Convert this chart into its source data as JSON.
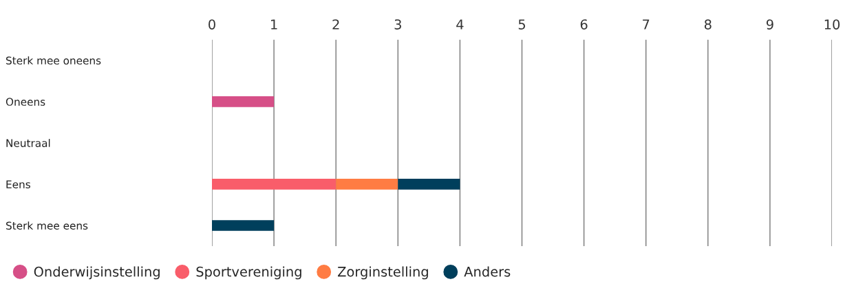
{
  "chart_data": {
    "type": "bar",
    "orientation": "horizontal",
    "stacked": true,
    "categories": [
      "Sterk mee oneens",
      "Oneens",
      "Neutraal",
      "Eens",
      "Sterk mee eens"
    ],
    "series": [
      {
        "name": "Onderwijsinstelling",
        "color": "#d64f87",
        "values": [
          0,
          1,
          0,
          0,
          0
        ]
      },
      {
        "name": "Sportvereniging",
        "color": "#f95d6a",
        "values": [
          0,
          0,
          0,
          2,
          0
        ]
      },
      {
        "name": "Zorginstelling",
        "color": "#ff7c43",
        "values": [
          0,
          0,
          0,
          1,
          0
        ]
      },
      {
        "name": "Anders",
        "color": "#003f5c",
        "values": [
          0,
          0,
          0,
          1,
          1
        ]
      }
    ],
    "xlim": [
      0,
      10
    ],
    "xticks": [
      0,
      1,
      2,
      3,
      4,
      5,
      6,
      7,
      8,
      9,
      10
    ],
    "grid": "x",
    "legend": "bottom"
  }
}
